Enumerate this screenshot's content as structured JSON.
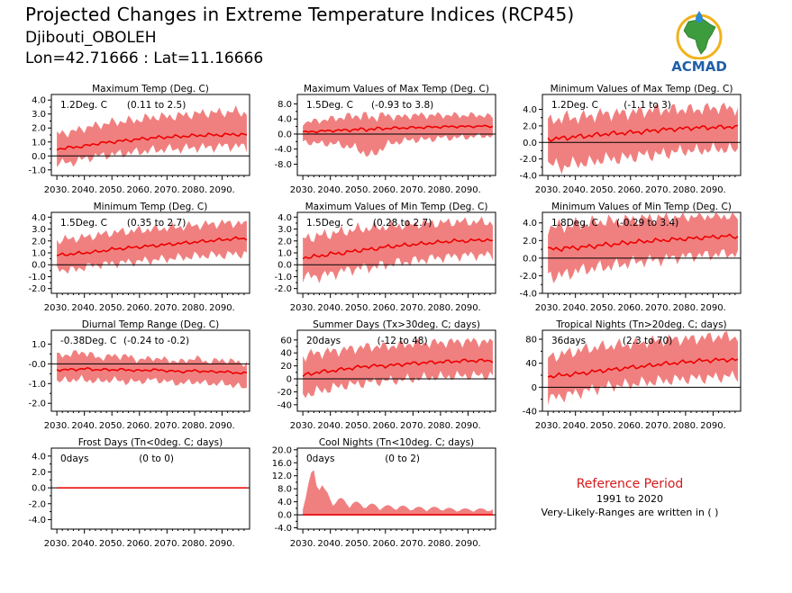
{
  "header": {
    "title": "Projected Changes in Extreme Temperature Indices (RCP45)",
    "location": "Djibouti_OBOLEH",
    "coords": "Lon=42.71666 : Lat=11.16666"
  },
  "logo": {
    "text": "ACMAD",
    "icon": "africa-map-logo-icon"
  },
  "reference": {
    "title": "Reference Period",
    "years": "1991 to 2020",
    "note": "Very-Likely-Ranges are written in ( )"
  },
  "colors": {
    "band": "#f08080",
    "line": "#ee0000",
    "zero": "#000000"
  },
  "chart_data": [
    {
      "type": "area",
      "title": "Maximum Temp (Deg. C)",
      "value_label": "1.2Deg. C",
      "range_label": "(0.11 to 2.5)",
      "x": [
        2030,
        2035,
        2040,
        2045,
        2050,
        2055,
        2060,
        2065,
        2070,
        2075,
        2080,
        2085,
        2090,
        2095,
        2100
      ],
      "median": [
        0.5,
        0.6,
        0.7,
        0.9,
        1.0,
        1.1,
        1.2,
        1.3,
        1.35,
        1.4,
        1.45,
        1.5,
        1.5,
        1.55,
        1.5
      ],
      "low": [
        -0.5,
        -0.5,
        -0.2,
        0.0,
        0.1,
        0.2,
        0.3,
        0.4,
        0.5,
        0.5,
        0.6,
        0.6,
        0.7,
        0.7,
        0.6
      ],
      "high": [
        1.6,
        1.7,
        2.0,
        2.2,
        2.4,
        2.5,
        2.6,
        2.8,
        2.8,
        2.9,
        3.0,
        3.1,
        3.1,
        3.2,
        3.0
      ],
      "ylim": [
        -1.4,
        4.4
      ],
      "yticks": [
        -1.0,
        0.0,
        1.0,
        2.0,
        3.0,
        4.0
      ],
      "ytick_labels": [
        "-1.0",
        "0.0",
        "1.0",
        "2.0",
        "3.0",
        "4.0"
      ],
      "xticks": [
        2030,
        2040,
        2050,
        2060,
        2070,
        2080,
        2090
      ],
      "xtick_labels": [
        "2030.",
        "2040.",
        "2050.",
        "2060.",
        "2070.",
        "2080.",
        "2090."
      ]
    },
    {
      "type": "area",
      "title": "Maximum Values of Max Temp (Deg. C)",
      "value_label": "1.5Deg. C",
      "range_label": "(-0.93 to 3.8)",
      "x": [
        2030,
        2035,
        2040,
        2045,
        2050,
        2055,
        2060,
        2065,
        2070,
        2075,
        2080,
        2085,
        2090,
        2095,
        2100
      ],
      "median": [
        0.5,
        0.7,
        0.9,
        1.0,
        1.2,
        1.3,
        1.5,
        1.6,
        1.7,
        1.8,
        1.9,
        2.0,
        2.0,
        2.1,
        2.0
      ],
      "low": [
        -2.0,
        -2.5,
        -2.5,
        -3.0,
        -4.0,
        -6.0,
        -3.0,
        -2.0,
        -1.5,
        -1.5,
        -1.0,
        -1.0,
        -0.8,
        -0.5,
        -0.5
      ],
      "high": [
        3.0,
        3.5,
        4.0,
        4.5,
        5.0,
        4.5,
        5.0,
        4.5,
        5.0,
        5.0,
        5.0,
        5.0,
        5.0,
        5.0,
        4.5
      ],
      "ylim": [
        -11,
        10.5
      ],
      "yticks": [
        -8.0,
        -4.0,
        0.0,
        4.0,
        8.0
      ],
      "ytick_labels": [
        "-8.0",
        "-4.0",
        "0.0",
        "4.0",
        "8.0"
      ],
      "xticks": [
        2030,
        2040,
        2050,
        2060,
        2070,
        2080,
        2090
      ],
      "xtick_labels": [
        "2030.",
        "2040.",
        "2050.",
        "2060.",
        "2070.",
        "2080.",
        "2090."
      ]
    },
    {
      "type": "area",
      "title": "Minimum Values of Max Temp (Deg. C)",
      "value_label": "1.2Deg. C",
      "range_label": "(-1.1 to 3)",
      "x": [
        2030,
        2035,
        2040,
        2045,
        2050,
        2055,
        2060,
        2065,
        2070,
        2075,
        2080,
        2085,
        2090,
        2095,
        2100
      ],
      "median": [
        0.4,
        0.5,
        0.7,
        0.8,
        1.0,
        1.1,
        1.2,
        1.3,
        1.5,
        1.6,
        1.7,
        1.8,
        1.8,
        1.9,
        1.8
      ],
      "low": [
        -2.5,
        -3.0,
        -2.5,
        -2.5,
        -2.0,
        -2.0,
        -1.8,
        -1.5,
        -1.5,
        -1.2,
        -1.0,
        -1.0,
        -0.8,
        -0.8,
        -1.0
      ],
      "high": [
        2.5,
        3.0,
        3.0,
        3.2,
        3.5,
        3.5,
        3.6,
        3.8,
        4.0,
        4.0,
        4.0,
        4.0,
        4.2,
        4.2,
        4.0
      ],
      "ylim": [
        -4.0,
        5.8
      ],
      "yticks": [
        -4.0,
        -2.0,
        0.0,
        2.0,
        4.0
      ],
      "ytick_labels": [
        "-4.0",
        "-2.0",
        "0.0",
        "2.0",
        "4.0"
      ],
      "xticks": [
        2030,
        2040,
        2050,
        2060,
        2070,
        2080,
        2090
      ],
      "xtick_labels": [
        "2030.",
        "2040.",
        "2050.",
        "2060.",
        "2070.",
        "2080.",
        "2090."
      ]
    },
    {
      "type": "area",
      "title": "Minimum Temp (Deg. C)",
      "value_label": "1.5Deg. C",
      "range_label": "(0.35 to 2.7)",
      "x": [
        2030,
        2035,
        2040,
        2045,
        2050,
        2055,
        2060,
        2065,
        2070,
        2075,
        2080,
        2085,
        2090,
        2095,
        2100
      ],
      "median": [
        0.8,
        0.9,
        1.0,
        1.1,
        1.3,
        1.4,
        1.5,
        1.6,
        1.7,
        1.8,
        1.9,
        2.0,
        2.1,
        2.2,
        2.2
      ],
      "low": [
        -0.3,
        -0.5,
        -0.2,
        0.0,
        0.1,
        0.2,
        0.3,
        0.4,
        0.5,
        0.6,
        0.7,
        0.8,
        0.8,
        0.9,
        0.9
      ],
      "high": [
        2.0,
        2.2,
        2.3,
        2.5,
        2.7,
        2.8,
        2.9,
        3.0,
        3.1,
        3.2,
        3.3,
        3.4,
        3.5,
        3.5,
        3.4
      ],
      "ylim": [
        -2.4,
        4.4
      ],
      "yticks": [
        -2.0,
        -1.0,
        0.0,
        1.0,
        2.0,
        3.0,
        4.0
      ],
      "ytick_labels": [
        "-2.0",
        "-1.0",
        "0.0",
        "1.0",
        "2.0",
        "3.0",
        "4.0"
      ],
      "xticks": [
        2030,
        2040,
        2050,
        2060,
        2070,
        2080,
        2090
      ],
      "xtick_labels": [
        "2030.",
        "2040.",
        "2050.",
        "2060.",
        "2070.",
        "2080.",
        "2090."
      ]
    },
    {
      "type": "area",
      "title": "Maximum Values of Min Temp (Deg. C)",
      "value_label": "1.5Deg. C",
      "range_label": "(0.28 to 2.7)",
      "x": [
        2030,
        2035,
        2040,
        2045,
        2050,
        2055,
        2060,
        2065,
        2070,
        2075,
        2080,
        2085,
        2090,
        2095,
        2100
      ],
      "median": [
        0.6,
        0.7,
        0.9,
        1.0,
        1.2,
        1.3,
        1.5,
        1.6,
        1.7,
        1.8,
        1.9,
        2.0,
        2.0,
        2.1,
        2.0
      ],
      "low": [
        -1.0,
        -1.0,
        -0.8,
        -0.5,
        -0.3,
        -0.2,
        0.0,
        0.2,
        0.3,
        0.5,
        0.6,
        0.7,
        0.8,
        0.8,
        0.8
      ],
      "high": [
        2.2,
        2.4,
        2.6,
        2.8,
        3.0,
        3.1,
        3.2,
        3.3,
        3.4,
        3.5,
        3.5,
        3.6,
        3.6,
        3.6,
        3.5
      ],
      "ylim": [
        -2.4,
        4.4
      ],
      "yticks": [
        -2.0,
        -1.0,
        0.0,
        1.0,
        2.0,
        3.0,
        4.0
      ],
      "ytick_labels": [
        "-2.0",
        "-1.0",
        "0.0",
        "1.0",
        "2.0",
        "3.0",
        "4.0"
      ],
      "xticks": [
        2030,
        2040,
        2050,
        2060,
        2070,
        2080,
        2090
      ],
      "xtick_labels": [
        "2030.",
        "2040.",
        "2050.",
        "2060.",
        "2070.",
        "2080.",
        "2090."
      ]
    },
    {
      "type": "area",
      "title": "Minimum Values of Min Temp (Deg. C)",
      "value_label": "1.8Deg. C",
      "range_label": "(-0.29 to 3.4)",
      "x": [
        2030,
        2035,
        2040,
        2045,
        2050,
        2055,
        2060,
        2065,
        2070,
        2075,
        2080,
        2085,
        2090,
        2095,
        2100
      ],
      "median": [
        1.0,
        1.1,
        1.2,
        1.3,
        1.5,
        1.6,
        1.8,
        1.9,
        2.0,
        2.1,
        2.2,
        2.3,
        2.4,
        2.5,
        2.4
      ],
      "low": [
        -2.0,
        -2.0,
        -1.5,
        -1.2,
        -1.0,
        -0.8,
        -0.5,
        -0.3,
        -0.2,
        0.0,
        0.2,
        0.3,
        0.4,
        0.5,
        0.5
      ],
      "high": [
        3.5,
        3.6,
        3.8,
        4.0,
        4.2,
        4.2,
        4.4,
        4.5,
        4.6,
        4.6,
        4.7,
        4.8,
        4.8,
        4.8,
        4.6
      ],
      "ylim": [
        -4.0,
        5.2
      ],
      "yticks": [
        -4.0,
        -2.0,
        0.0,
        2.0,
        4.0
      ],
      "ytick_labels": [
        "-4.0",
        "-2.0",
        "0.0",
        "2.0",
        "4.0"
      ],
      "xticks": [
        2030,
        2040,
        2050,
        2060,
        2070,
        2080,
        2090
      ],
      "xtick_labels": [
        "2030.",
        "2040.",
        "2050.",
        "2060.",
        "2070.",
        "2080.",
        "2090."
      ]
    },
    {
      "type": "area",
      "title": "Diurnal Temp Range (Deg. C)",
      "value_label": "-0.38Deg. C",
      "range_label": "(-0.24 to -0.2)",
      "x": [
        2030,
        2035,
        2040,
        2045,
        2050,
        2055,
        2060,
        2065,
        2070,
        2075,
        2080,
        2085,
        2090,
        2095,
        2100
      ],
      "median": [
        -0.3,
        -0.3,
        -0.25,
        -0.3,
        -0.3,
        -0.3,
        -0.35,
        -0.3,
        -0.35,
        -0.4,
        -0.35,
        -0.4,
        -0.4,
        -0.45,
        -0.5
      ],
      "low": [
        -0.9,
        -0.8,
        -0.8,
        -0.9,
        -0.8,
        -0.9,
        -0.9,
        -0.8,
        -0.9,
        -1.0,
        -0.9,
        -1.0,
        -1.0,
        -1.1,
        -1.3
      ],
      "high": [
        0.4,
        0.5,
        0.6,
        0.3,
        0.4,
        0.4,
        0.2,
        0.3,
        0.2,
        0.1,
        0.3,
        0.1,
        0.2,
        0.1,
        0.0
      ],
      "ylim": [
        -2.4,
        1.7
      ],
      "yticks": [
        -2.0,
        -1.0,
        0.0,
        1.0
      ],
      "ytick_labels": [
        "-2.0",
        "-1.0",
        "-0.0",
        "1.0"
      ],
      "xticks": [
        2030,
        2040,
        2050,
        2060,
        2070,
        2080,
        2090
      ],
      "xtick_labels": [
        "2030.",
        "2040.",
        "2050.",
        "2060.",
        "2070.",
        "2080.",
        "2090."
      ]
    },
    {
      "type": "area",
      "title": "Summer Days (Tx>30deg. C; days)",
      "value_label": "20days",
      "range_label": "(-12 to 48)",
      "x": [
        2030,
        2035,
        2040,
        2045,
        2050,
        2055,
        2060,
        2065,
        2070,
        2075,
        2080,
        2085,
        2090,
        2095,
        2100
      ],
      "median": [
        5,
        10,
        12,
        15,
        18,
        20,
        20,
        22,
        24,
        25,
        26,
        27,
        28,
        28,
        28
      ],
      "low": [
        -25,
        -20,
        -15,
        -10,
        -8,
        -5,
        -3,
        -2,
        0,
        2,
        3,
        4,
        5,
        5,
        5
      ],
      "high": [
        35,
        40,
        42,
        45,
        48,
        50,
        50,
        52,
        55,
        55,
        56,
        57,
        58,
        58,
        55
      ],
      "ylim": [
        -50,
        75
      ],
      "yticks": [
        -40,
        -20,
        0,
        20,
        40,
        60
      ],
      "ytick_labels": [
        "-40",
        "-20",
        "0",
        "20",
        "40",
        "60"
      ],
      "xticks": [
        2030,
        2040,
        2050,
        2060,
        2070,
        2080,
        2090
      ],
      "xtick_labels": [
        "2030.",
        "2040.",
        "2050.",
        "2060.",
        "2070.",
        "2080.",
        "2090."
      ]
    },
    {
      "type": "area",
      "title": "Tropical Nights (Tn>20deg. C; days)",
      "value_label": "36days",
      "range_label": "(2.3 to 70)",
      "x": [
        2030,
        2035,
        2040,
        2045,
        2050,
        2055,
        2060,
        2065,
        2070,
        2075,
        2080,
        2085,
        2090,
        2095,
        2100
      ],
      "median": [
        18,
        20,
        22,
        25,
        28,
        30,
        33,
        35,
        38,
        40,
        42,
        44,
        45,
        46,
        45
      ],
      "low": [
        -20,
        -15,
        -10,
        -5,
        0,
        3,
        5,
        8,
        10,
        12,
        14,
        15,
        16,
        18,
        18
      ],
      "high": [
        50,
        55,
        60,
        65,
        68,
        70,
        72,
        75,
        78,
        80,
        80,
        82,
        84,
        85,
        82
      ],
      "ylim": [
        -40,
        95
      ],
      "yticks": [
        -40,
        0,
        40,
        80
      ],
      "ytick_labels": [
        "-40",
        "0",
        "40",
        "80"
      ],
      "xticks": [
        2030,
        2040,
        2050,
        2060,
        2070,
        2080,
        2090
      ],
      "xtick_labels": [
        "2030.",
        "2040.",
        "2050.",
        "2060.",
        "2070.",
        "2080.",
        "2090."
      ]
    },
    {
      "type": "area",
      "title": "Frost Days (Tn<0deg. C; days)",
      "value_label": "0days",
      "range_label": "(0 to 0)",
      "x": [
        2030,
        2100
      ],
      "median": [
        0,
        0
      ],
      "low": [
        0,
        0
      ],
      "high": [
        0,
        0
      ],
      "ylim": [
        -5.2,
        5.0
      ],
      "yticks": [
        -4.0,
        -2.0,
        0.0,
        2.0,
        4.0
      ],
      "ytick_labels": [
        "-4.0",
        "-2.0",
        "0.0",
        "2.0",
        "4.0"
      ],
      "xticks": [
        2030,
        2040,
        2050,
        2060,
        2070,
        2080,
        2090
      ],
      "xtick_labels": [
        "2030.",
        "2040.",
        "2050.",
        "2060.",
        "2070.",
        "2080.",
        "2090."
      ]
    },
    {
      "type": "area",
      "title": "Cool Nights (Tn<10deg. C; days)",
      "value_label": "0days",
      "range_label": "(0 to 2)",
      "x": [
        2030,
        2032,
        2034,
        2036,
        2038,
        2040,
        2045,
        2050,
        2055,
        2060,
        2065,
        2070,
        2075,
        2080,
        2085,
        2090,
        2095,
        2100
      ],
      "median": [
        0,
        0,
        0,
        0,
        0,
        0,
        0,
        0,
        0,
        0,
        0,
        0,
        0,
        0,
        0,
        0,
        0,
        0
      ],
      "low": [
        0,
        0,
        0,
        0,
        0,
        0,
        0,
        0,
        0,
        0,
        0,
        0,
        0,
        0,
        0,
        0,
        0,
        0
      ],
      "high": [
        4,
        10,
        16,
        14,
        8,
        6,
        5,
        4,
        3.5,
        3,
        3,
        2.5,
        2.5,
        2.5,
        2,
        2,
        2,
        2
      ],
      "ylim": [
        -4.4,
        20.5
      ],
      "yticks": [
        -4.0,
        0.0,
        4.0,
        8.0,
        12.0,
        16.0,
        20.0
      ],
      "ytick_labels": [
        "-4.0",
        "0.0",
        "4.0",
        "8.0",
        "12.0",
        "16.0",
        "20.0"
      ],
      "xticks": [
        2030,
        2040,
        2050,
        2060,
        2070,
        2080,
        2090
      ],
      "xtick_labels": [
        "2030.",
        "2040.",
        "2050.",
        "2060.",
        "2070.",
        "2080.",
        "2090."
      ]
    }
  ]
}
